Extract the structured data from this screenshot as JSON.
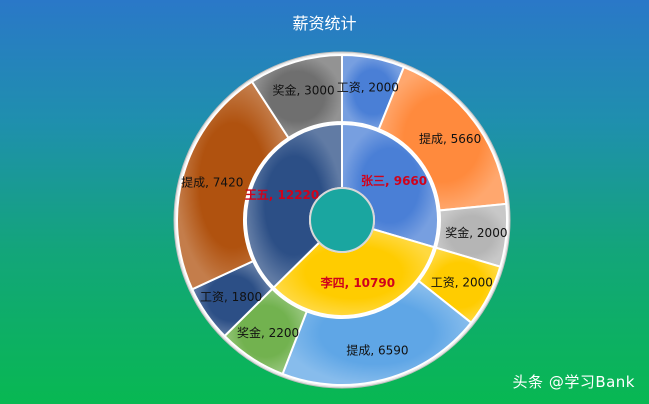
{
  "chart_data": {
    "type": "donut",
    "title": "薪资统计",
    "inner_ring": [
      {
        "label": "张三, 9660",
        "name": "张三",
        "value": 9660,
        "color": "#4a7fd6"
      },
      {
        "label": "李四, 10790",
        "name": "李四",
        "value": 10790,
        "color": "#ffcc00"
      },
      {
        "label": "王五, 12220",
        "name": "王五",
        "value": 12220,
        "color": "#2c4f86"
      }
    ],
    "outer_ring": [
      {
        "label": "工资, 2000",
        "category": "工资",
        "person": "张三",
        "value": 2000,
        "color": "#4a7fd6"
      },
      {
        "label": "提成, 5660",
        "category": "提成",
        "person": "张三",
        "value": 5660,
        "color": "#ff8a3d"
      },
      {
        "label": "奖金, 2000",
        "category": "奖金",
        "person": "张三",
        "value": 2000,
        "color": "#b5b5b5"
      },
      {
        "label": "工资, 2000",
        "category": "工资",
        "person": "李四",
        "value": 2000,
        "color": "#ffcc00"
      },
      {
        "label": "提成, 6590",
        "category": "提成",
        "person": "李四",
        "value": 6590,
        "color": "#5fa6e6"
      },
      {
        "label": "奖金, 2200",
        "category": "奖金",
        "person": "李四",
        "value": 2200,
        "color": "#72b24f"
      },
      {
        "label": "工资, 1800",
        "category": "工资",
        "person": "王五",
        "value": 1800,
        "color": "#2c4f86"
      },
      {
        "label": "提成, 7420",
        "category": "提成",
        "person": "王五",
        "value": 7420,
        "color": "#b0520f"
      },
      {
        "label": "奖金, 3000",
        "category": "奖金",
        "person": "王五",
        "value": 3000,
        "color": "#6f6f6f"
      }
    ]
  },
  "watermark": "头条 @学习Bank"
}
